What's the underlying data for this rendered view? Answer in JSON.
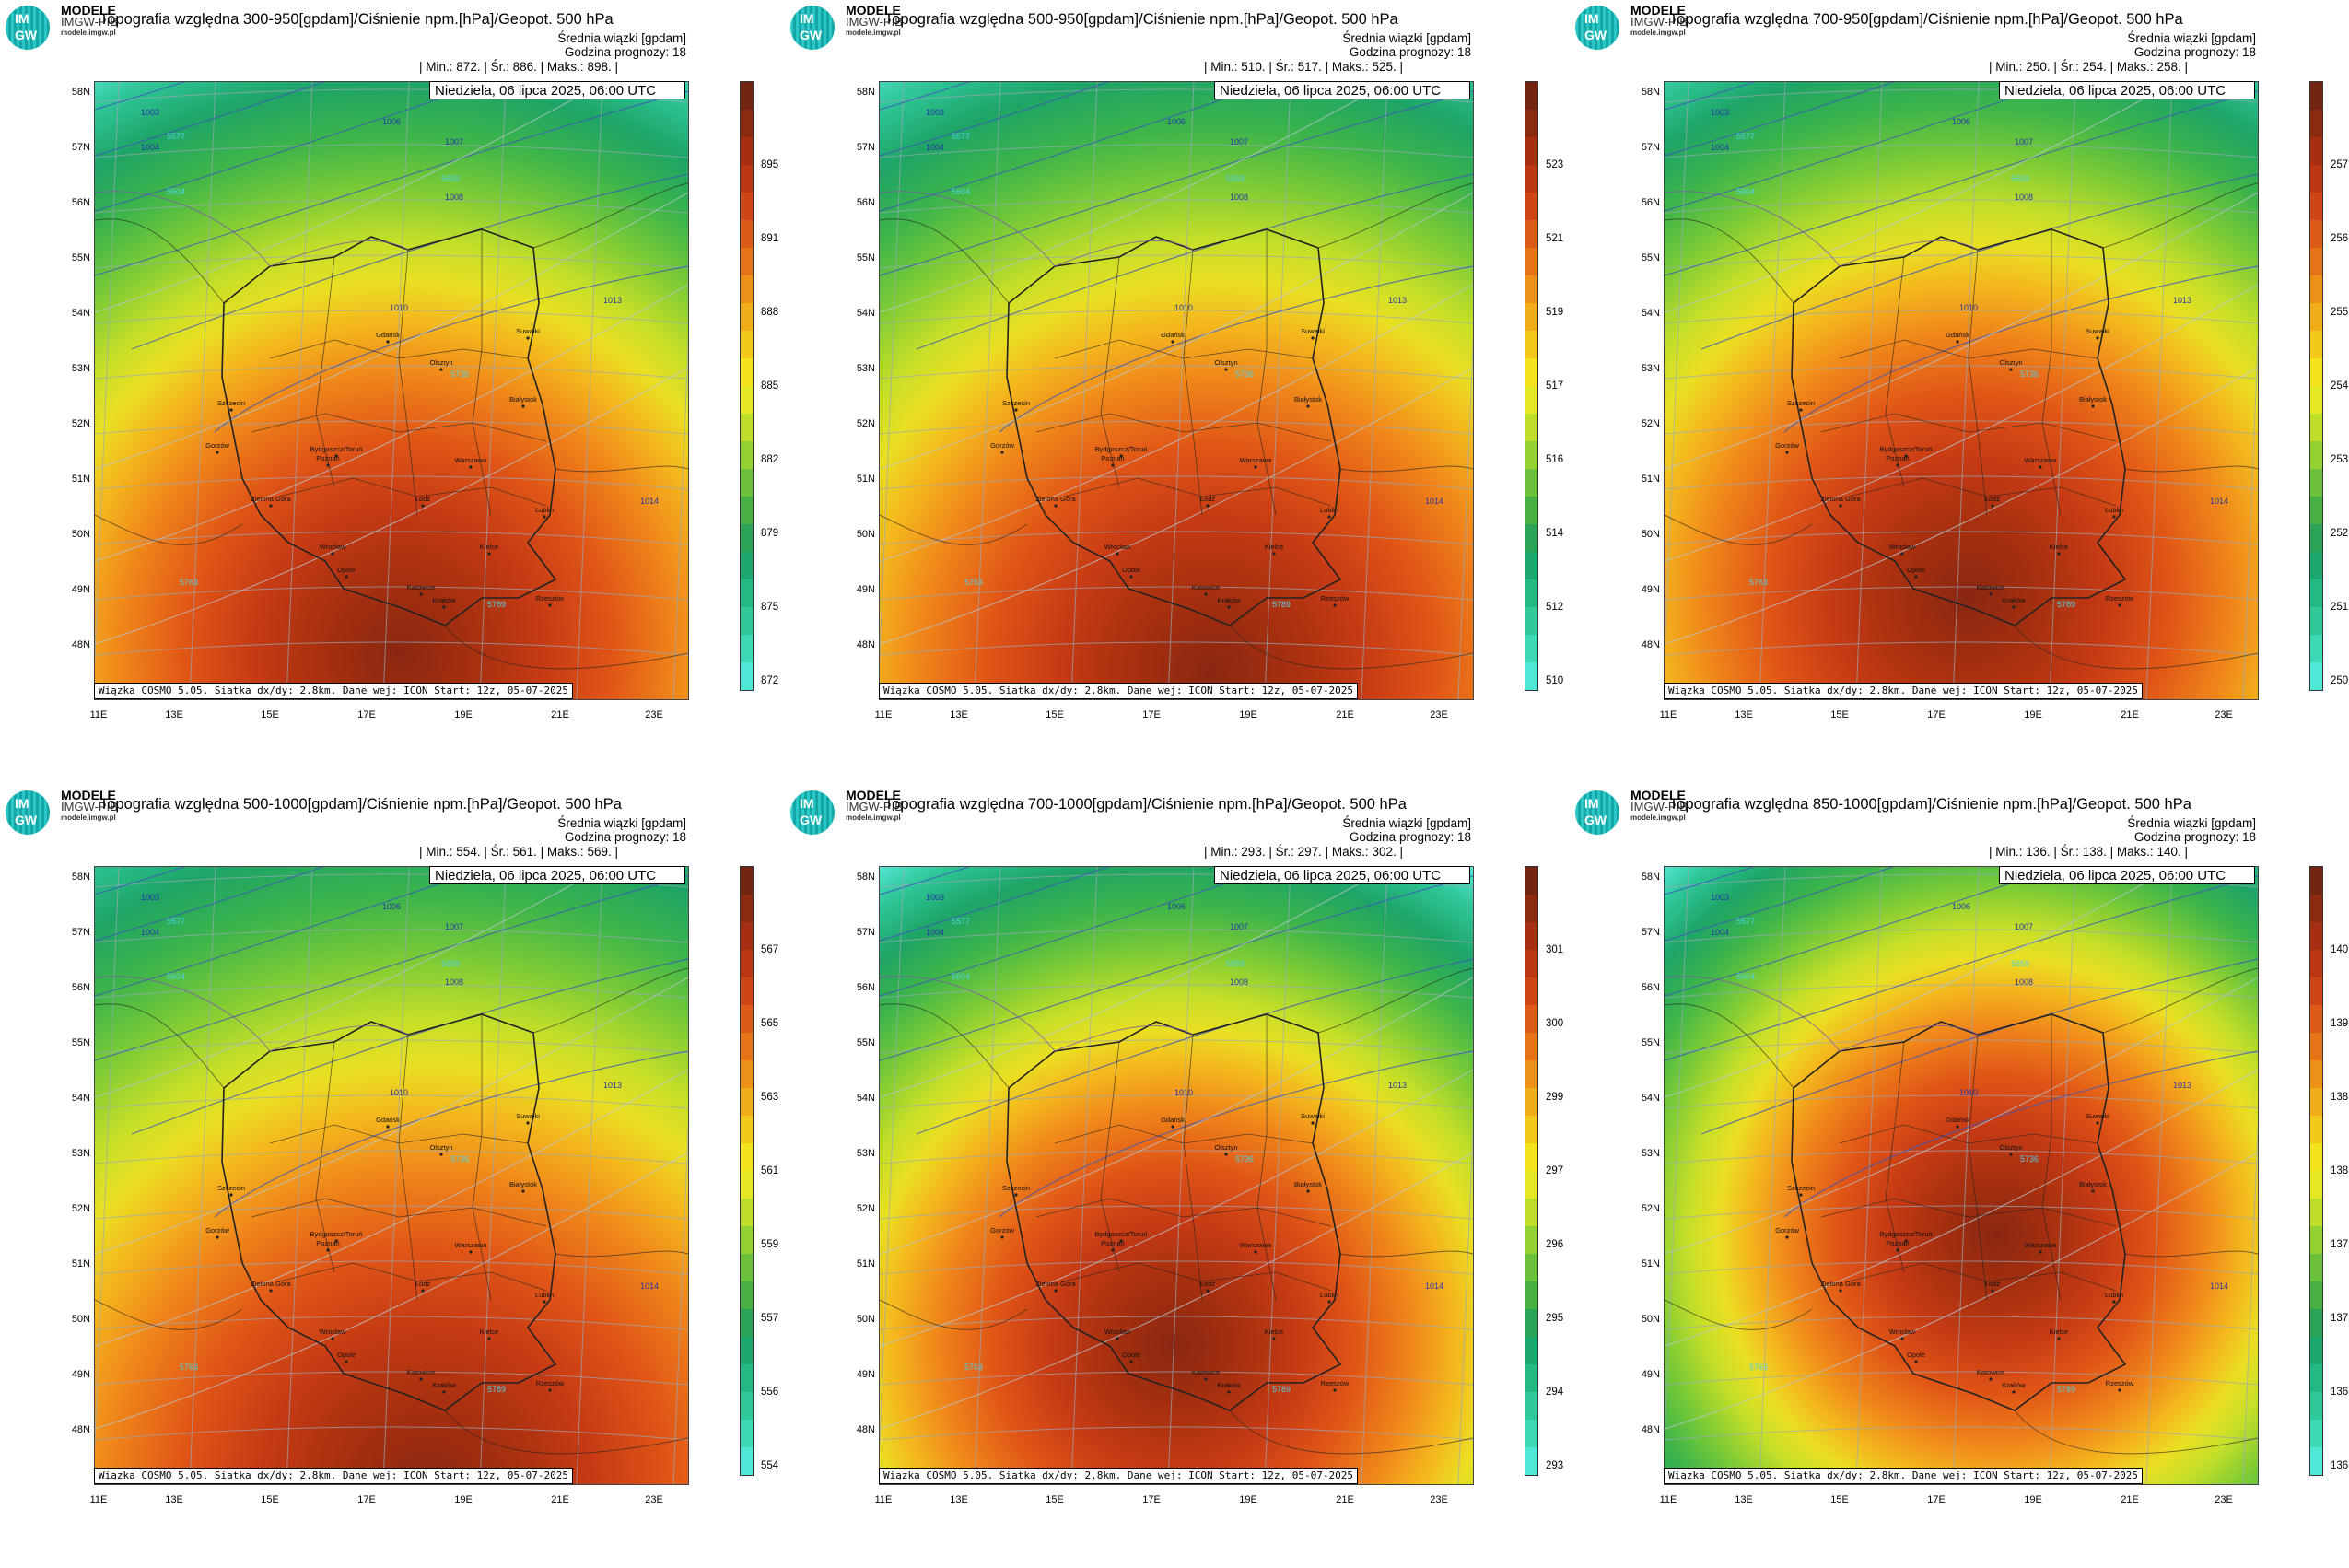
{
  "logo": {
    "brand": "MODELE",
    "sub": "IMGW-PIB",
    "url": "modele.imgw.pl",
    "im": "IM",
    "gw": "GW"
  },
  "common": {
    "subtitle1": "Średnia wiązki [gpdam]",
    "subtitle2": "Godzina prognozy: 18",
    "date": "Niedziela, 06 lipca 2025, 06:00 UTC",
    "footer": "Wiązka COSMO 5.05. Siatka dx/dy: 2.8km. Dane wej: ICON Start: 12z, 05-07-2025",
    "lat_labels": [
      "58N",
      "57N",
      "56N",
      "55N",
      "54N",
      "53N",
      "52N",
      "51N",
      "50N",
      "49N",
      "48N"
    ],
    "lon_labels": [
      "11E",
      "13E",
      "15E",
      "17E",
      "19E",
      "21E",
      "23E"
    ],
    "city_labels": [
      "Gdańsk",
      "Olsztyn",
      "Suwałki",
      "Szczecin",
      "Bydgoszcz/Toruń",
      "Białystok",
      "Gorzów",
      "Warszawa",
      "Poznań",
      "Łódź",
      "Zielona Góra",
      "Lublin",
      "Wrocław",
      "Kielce",
      "Opole",
      "Katowice",
      "Kraków",
      "Rzeszów"
    ],
    "contour_labels": [
      "1003",
      "1004",
      "1006",
      "1007",
      "1008",
      "1010",
      "1013",
      "1014",
      "5577",
      "5604",
      "5659",
      "5736",
      "5763",
      "5789"
    ]
  },
  "colors": {
    "cbar": [
      "#4fe8d6",
      "#3dd8b4",
      "#2fc99a",
      "#23b982",
      "#1aa86f",
      "#2aa356",
      "#48b043",
      "#6cc13a",
      "#93d031",
      "#bfde29",
      "#e4e823",
      "#f4e21b",
      "#f2c81a",
      "#f0ac19",
      "#ec9018",
      "#e67417",
      "#dc5a16",
      "#cf4515",
      "#bd3713",
      "#a62f12",
      "#8c2a11",
      "#722511"
    ]
  },
  "panels": [
    {
      "title": "Topografia względna 300-950[gpdam]/Ciśnienie npm.[hPa]/Geopot. 500 hPa",
      "min": "872.",
      "avg": "886.",
      "max": "898.",
      "min_label": "Min.:",
      "avg_label": "Śr.:",
      "max_label": "Maks.:",
      "cbar": [
        "895",
        "891",
        "888",
        "885",
        "882",
        "879",
        "875",
        "872"
      ]
    },
    {
      "title": "Topografia względna 500-950[gpdam]/Ciśnienie npm.[hPa]/Geopot. 500 hPa",
      "min": "510.",
      "avg": "517.",
      "max": "525.",
      "min_label": "Min.:",
      "avg_label": "Śr.:",
      "max_label": "Maks.:",
      "cbar": [
        "523",
        "521",
        "519",
        "517",
        "516",
        "514",
        "512",
        "510"
      ]
    },
    {
      "title": "Topografia względna 700-950[gpdam]/Ciśnienie npm.[hPa]/Geopot. 500 hPa",
      "min": "250.",
      "avg": "254.",
      "max": "258.",
      "min_label": "Min.:",
      "avg_label": "Śr.:",
      "max_label": "Maks.:",
      "cbar": [
        "257",
        "256",
        "255",
        "254",
        "253",
        "252",
        "251",
        "250"
      ]
    },
    {
      "title": "Topografia względna 500-1000[gpdam]/Ciśnienie npm.[hPa]/Geopot. 500 hPa",
      "min": "554.",
      "avg": "561.",
      "max": "569.",
      "min_label": "Min.:",
      "avg_label": "Śr.:",
      "max_label": "Maks.:",
      "cbar": [
        "567",
        "565",
        "563",
        "561",
        "559",
        "557",
        "556",
        "554"
      ]
    },
    {
      "title": "Topografia względna 700-1000[gpdam]/Ciśnienie npm.[hPa]/Geopot. 500 hPa",
      "min": "293.",
      "avg": "297.",
      "max": "302.",
      "min_label": "Min.:",
      "avg_label": "Śr.:",
      "max_label": "Maks.:",
      "cbar": [
        "301",
        "300",
        "299",
        "297",
        "296",
        "295",
        "294",
        "293"
      ]
    },
    {
      "title": "Topografia względna 850-1000[gpdam]/Ciśnienie npm.[hPa]/Geopot. 500 hPa",
      "min": "136.",
      "avg": "138.",
      "max": "140.",
      "min_label": "Min.:",
      "avg_label": "Śr.:",
      "max_label": "Maks.:",
      "cbar": [
        "140",
        "139",
        "138",
        "138",
        "137",
        "137",
        "136",
        "136"
      ]
    }
  ]
}
